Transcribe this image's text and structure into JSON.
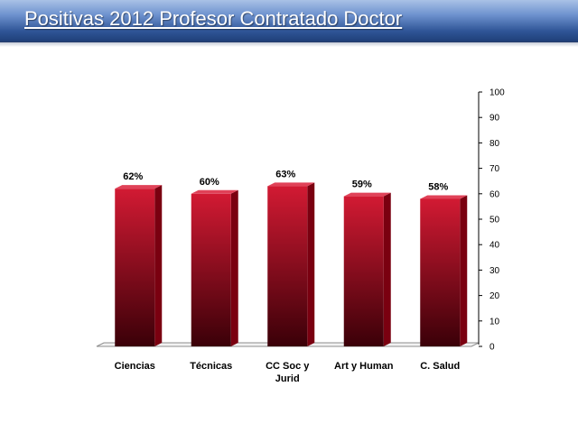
{
  "slide": {
    "title": "Positivas 2012 Profesor Contratado Doctor"
  },
  "colors": {
    "bar_top": "#d21a33",
    "bar_bottom": "#3a0008",
    "bar_side": "#7a0010",
    "bar_cap": "#e04258"
  },
  "chart_data": {
    "type": "bar",
    "title": "",
    "xlabel": "",
    "ylabel": "",
    "categories": [
      "Ciencias",
      "Técnicas",
      "CC Soc y Jurid",
      "Art y Human",
      "C. Salud"
    ],
    "category_lines": [
      [
        "Ciencias"
      ],
      [
        "Técnicas"
      ],
      [
        "CC Soc y",
        "Jurid"
      ],
      [
        "Art y Human"
      ],
      [
        "C. Salud"
      ]
    ],
    "values": [
      62,
      60,
      63,
      59,
      58
    ],
    "data_labels": [
      "62%",
      "60%",
      "63%",
      "59%",
      "58%"
    ],
    "ylim": [
      0,
      100
    ],
    "yticks": [
      0,
      10,
      20,
      30,
      40,
      50,
      60,
      70,
      80,
      90,
      100
    ],
    "y_axis_position": "right",
    "grid": false,
    "legend": "none"
  }
}
